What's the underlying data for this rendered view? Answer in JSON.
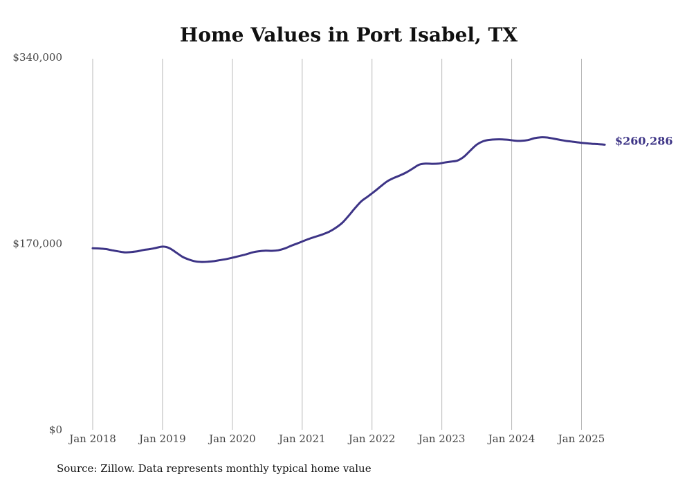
{
  "chart_data": {
    "type": "line",
    "title": "Home Values in Port Isabel, TX",
    "xlabel": "",
    "ylabel": "",
    "x_start": "2018-01",
    "x_end": "2025-05",
    "ylim": [
      0,
      340000
    ],
    "y_ticks": [
      {
        "value": 0,
        "label": "$0"
      },
      {
        "value": 170000,
        "label": "$170,000"
      },
      {
        "value": 340000,
        "label": "$340,000"
      }
    ],
    "x_ticks": [
      {
        "date": "2018-01",
        "label": "Jan 2018"
      },
      {
        "date": "2019-01",
        "label": "Jan 2019"
      },
      {
        "date": "2020-01",
        "label": "Jan 2020"
      },
      {
        "date": "2021-01",
        "label": "Jan 2021"
      },
      {
        "date": "2022-01",
        "label": "Jan 2022"
      },
      {
        "date": "2023-01",
        "label": "Jan 2023"
      },
      {
        "date": "2024-01",
        "label": "Jan 2024"
      },
      {
        "date": "2025-01",
        "label": "Jan 2025"
      }
    ],
    "grid": {
      "vertical": true,
      "horizontal": false
    },
    "series": [
      {
        "color": "#3d3486",
        "end_label": "$260,286",
        "points": [
          [
            "2018-01",
            165700
          ],
          [
            "2018-02",
            165500
          ],
          [
            "2018-03",
            165000
          ],
          [
            "2018-04",
            163900
          ],
          [
            "2018-05",
            162900
          ],
          [
            "2018-06",
            162000
          ],
          [
            "2018-07",
            162300
          ],
          [
            "2018-08",
            163000
          ],
          [
            "2018-09",
            164200
          ],
          [
            "2018-10",
            165000
          ],
          [
            "2018-11",
            166200
          ],
          [
            "2018-12",
            167200
          ],
          [
            "2019-01",
            165800
          ],
          [
            "2019-02",
            162000
          ],
          [
            "2019-03",
            158000
          ],
          [
            "2019-04",
            155500
          ],
          [
            "2019-05",
            153800
          ],
          [
            "2019-06",
            153200
          ],
          [
            "2019-07",
            153400
          ],
          [
            "2019-08",
            154000
          ],
          [
            "2019-09",
            155000
          ],
          [
            "2019-10",
            156000
          ],
          [
            "2019-11",
            157300
          ],
          [
            "2019-12",
            158800
          ],
          [
            "2020-01",
            160200
          ],
          [
            "2020-02",
            162000
          ],
          [
            "2020-03",
            163000
          ],
          [
            "2020-04",
            163500
          ],
          [
            "2020-05",
            163400
          ],
          [
            "2020-06",
            163900
          ],
          [
            "2020-07",
            165500
          ],
          [
            "2020-08",
            168000
          ],
          [
            "2020-09",
            170200
          ],
          [
            "2020-10",
            172500
          ],
          [
            "2020-11",
            174700
          ],
          [
            "2020-12",
            176600
          ],
          [
            "2021-01",
            178600
          ],
          [
            "2021-02",
            181000
          ],
          [
            "2021-03",
            184500
          ],
          [
            "2021-04",
            189000
          ],
          [
            "2021-05",
            195500
          ],
          [
            "2021-06",
            202500
          ],
          [
            "2021-07",
            208800
          ],
          [
            "2021-08",
            213000
          ],
          [
            "2021-09",
            217500
          ],
          [
            "2021-10",
            222200
          ],
          [
            "2021-11",
            226800
          ],
          [
            "2021-12",
            229800
          ],
          [
            "2022-01",
            232200
          ],
          [
            "2022-02",
            235000
          ],
          [
            "2022-03",
            238500
          ],
          [
            "2022-04",
            242000
          ],
          [
            "2022-05",
            243000
          ],
          [
            "2022-06",
            242800
          ],
          [
            "2022-07",
            243000
          ],
          [
            "2022-08",
            244000
          ],
          [
            "2022-09",
            244800
          ],
          [
            "2022-10",
            245800
          ],
          [
            "2022-11",
            249300
          ],
          [
            "2022-12",
            255000
          ],
          [
            "2023-01",
            260300
          ],
          [
            "2023-02",
            263400
          ],
          [
            "2023-03",
            264700
          ],
          [
            "2023-04",
            265100
          ],
          [
            "2023-05",
            265100
          ],
          [
            "2023-06",
            264700
          ],
          [
            "2023-07",
            263900
          ],
          [
            "2023-08",
            263800
          ],
          [
            "2023-09",
            264500
          ],
          [
            "2023-10",
            266200
          ],
          [
            "2023-11",
            267000
          ],
          [
            "2023-12",
            266800
          ],
          [
            "2024-01",
            265800
          ],
          [
            "2024-02",
            264700
          ],
          [
            "2024-03",
            263700
          ],
          [
            "2024-04",
            263000
          ],
          [
            "2024-05",
            262200
          ],
          [
            "2024-06",
            261600
          ],
          [
            "2024-07",
            261100
          ],
          [
            "2024-08",
            260800
          ],
          [
            "2024-09",
            260286
          ]
        ]
      }
    ]
  },
  "source": "Source: Zillow. Data represents monthly typical home value"
}
